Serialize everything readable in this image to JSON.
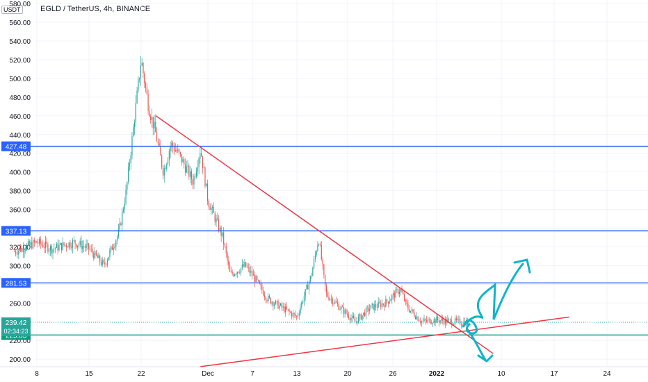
{
  "header": {
    "symbol_title": "EGLD / TetherUS, 4h, BINANCE",
    "unit_badge": "USDT"
  },
  "chart_data": {
    "type": "candlestick",
    "title": "EGLD / TetherUS, 4h, BINANCE",
    "ylim": [
      190,
      580
    ],
    "y_ticks": [
      200,
      220,
      260,
      280,
      300,
      320,
      340,
      360,
      380,
      400,
      420,
      440,
      460,
      480,
      500,
      520,
      540,
      560,
      580
    ],
    "y_tick_labels": [
      "200.00",
      "220.00",
      "260.00",
      "280.00",
      "300.00",
      "320.00",
      "340.00",
      "360.00",
      "380.00",
      "400.00",
      "420.00",
      "440.00",
      "460.00",
      "480.00",
      "500.00",
      "520.00",
      "540.00",
      "560.00",
      "580.00"
    ],
    "x_ticks": [
      "8",
      "15",
      "22",
      "Dec",
      "7",
      "13",
      "20",
      "26",
      "2022",
      "10",
      "17",
      "24"
    ],
    "grid": true,
    "colors": {
      "up": "#26a69a",
      "down": "#ef5350",
      "level": "#2962ff",
      "trend": "#f23645",
      "support": "#089981",
      "annotation": "#10b5c9"
    },
    "price_series": [
      {
        "date": "Nov 5",
        "close": 315
      },
      {
        "date": "Nov 8",
        "close": 325
      },
      {
        "date": "Nov 10",
        "close": 318
      },
      {
        "date": "Nov 13",
        "close": 325
      },
      {
        "date": "Nov 15",
        "close": 318
      },
      {
        "date": "Nov 17",
        "close": 300
      },
      {
        "date": "Nov 19",
        "close": 335
      },
      {
        "date": "Nov 20",
        "close": 380
      },
      {
        "date": "Nov 21",
        "close": 450
      },
      {
        "date": "Nov 22",
        "close": 520
      },
      {
        "date": "Nov 23",
        "close": 470
      },
      {
        "date": "Nov 24",
        "close": 440
      },
      {
        "date": "Nov 25",
        "close": 400
      },
      {
        "date": "Nov 26",
        "close": 430
      },
      {
        "date": "Nov 27",
        "close": 420
      },
      {
        "date": "Nov 29",
        "close": 390
      },
      {
        "date": "Nov 30",
        "close": 425
      },
      {
        "date": "Dec 1",
        "close": 370
      },
      {
        "date": "Dec 3",
        "close": 330
      },
      {
        "date": "Dec 4",
        "close": 290
      },
      {
        "date": "Dec 6",
        "close": 300
      },
      {
        "date": "Dec 7",
        "close": 290
      },
      {
        "date": "Dec 9",
        "close": 265
      },
      {
        "date": "Dec 11",
        "close": 255
      },
      {
        "date": "Dec 13",
        "close": 245
      },
      {
        "date": "Dec 15",
        "close": 290
      },
      {
        "date": "Dec 16",
        "close": 330
      },
      {
        "date": "Dec 17",
        "close": 270
      },
      {
        "date": "Dec 19",
        "close": 255
      },
      {
        "date": "Dec 21",
        "close": 240
      },
      {
        "date": "Dec 23",
        "close": 255
      },
      {
        "date": "Dec 25",
        "close": 260
      },
      {
        "date": "Dec 27",
        "close": 275
      },
      {
        "date": "Dec 28",
        "close": 255
      },
      {
        "date": "Dec 30",
        "close": 240
      },
      {
        "date": "Jan 1",
        "close": 242
      },
      {
        "date": "Jan 3",
        "close": 240
      },
      {
        "date": "Jan 5",
        "close": 239.42
      }
    ],
    "price_levels": [
      {
        "label": "427.48",
        "value": 427.48
      },
      {
        "label": "337.13",
        "value": 337.13
      },
      {
        "label": "281.53",
        "value": 281.53
      },
      {
        "label": "225.83",
        "value": 225.83
      }
    ],
    "current_price": {
      "label": "239.42",
      "countdown": "02:34:23",
      "value": 239.42
    },
    "trendlines": [
      {
        "name": "descending resistance",
        "from": {
          "date": "Nov 24",
          "price": 460
        },
        "to": {
          "date": "Jan 8",
          "price": 206
        }
      },
      {
        "name": "ascending support",
        "from": {
          "date": "Nov 30",
          "price": 192
        },
        "to": {
          "date": "Jan 18",
          "price": 245
        }
      }
    ]
  }
}
